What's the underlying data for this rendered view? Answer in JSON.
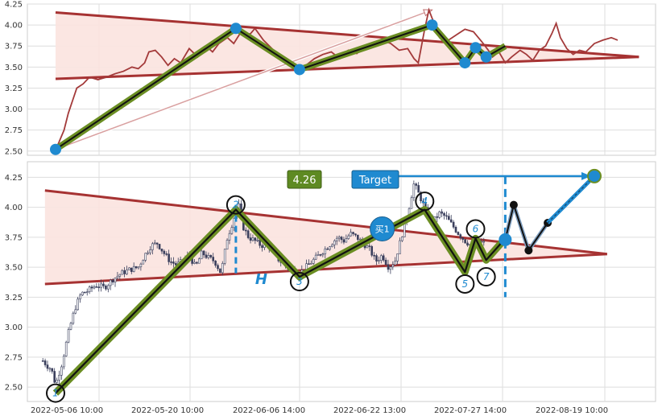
{
  "chart_data": [
    {
      "type": "line",
      "panel": "top",
      "ylim": [
        2.45,
        4.25
      ],
      "yticks": [
        "2.50",
        "2.75",
        "3.00",
        "3.25",
        "3.50",
        "3.75",
        "4.00",
        "4.25"
      ],
      "series": [
        {
          "values": [
            [
              0,
              2.52
            ],
            [
              0.3,
              2.6
            ],
            [
              0.8,
              2.75
            ],
            [
              1.2,
              2.95
            ],
            [
              1.6,
              3.1
            ],
            [
              2.0,
              3.25
            ],
            [
              2.6,
              3.3
            ],
            [
              3.2,
              3.38
            ],
            [
              4,
              3.35
            ],
            [
              4.8,
              3.38
            ],
            [
              5.6,
              3.42
            ],
            [
              6.4,
              3.45
            ],
            [
              7.2,
              3.5
            ],
            [
              7.8,
              3.48
            ],
            [
              8.4,
              3.55
            ],
            [
              8.8,
              3.68
            ],
            [
              9.4,
              3.7
            ],
            [
              10,
              3.62
            ],
            [
              10.6,
              3.52
            ],
            [
              11.2,
              3.6
            ],
            [
              11.8,
              3.55
            ],
            [
              12.6,
              3.72
            ],
            [
              13.4,
              3.62
            ],
            [
              14.2,
              3.75
            ],
            [
              14.8,
              3.68
            ],
            [
              15.4,
              3.78
            ],
            [
              16.2,
              3.85
            ],
            [
              16.8,
              3.78
            ],
            [
              17.4,
              3.9
            ],
            [
              18,
              3.88
            ],
            [
              18.4,
              3.9
            ],
            [
              18.8,
              3.96
            ],
            [
              19.6,
              3.82
            ],
            [
              20.4,
              3.72
            ],
            [
              21.2,
              3.6
            ],
            [
              21.8,
              3.55
            ],
            [
              22.4,
              3.52
            ],
            [
              23,
              3.5
            ],
            [
              23.6,
              3.52
            ],
            [
              24.4,
              3.6
            ],
            [
              25.2,
              3.65
            ],
            [
              26,
              3.68
            ],
            [
              26.8,
              3.6
            ],
            [
              27.6,
              3.7
            ],
            [
              28.4,
              3.66
            ],
            [
              29.2,
              3.75
            ],
            [
              30,
              3.78
            ],
            [
              30.8,
              3.82
            ],
            [
              31.6,
              3.78
            ],
            [
              32.4,
              3.7
            ],
            [
              33.2,
              3.72
            ],
            [
              33.8,
              3.6
            ],
            [
              34.2,
              3.55
            ],
            [
              34.8,
              3.95
            ],
            [
              35.2,
              4.18
            ],
            [
              35.6,
              4.05
            ],
            [
              36.2,
              3.85
            ],
            [
              36.8,
              3.8
            ],
            [
              37.4,
              3.85
            ],
            [
              38,
              3.9
            ],
            [
              38.6,
              3.95
            ],
            [
              39.4,
              3.92
            ],
            [
              40.2,
              3.8
            ],
            [
              40.8,
              3.7
            ],
            [
              41.2,
              3.62
            ],
            [
              41.8,
              3.68
            ],
            [
              42.4,
              3.55
            ],
            [
              43,
              3.62
            ],
            [
              43.8,
              3.7
            ],
            [
              44.4,
              3.65
            ],
            [
              45,
              3.58
            ],
            [
              45.6,
              3.7
            ],
            [
              46.2,
              3.75
            ],
            [
              46.8,
              3.9
            ],
            [
              47.2,
              4.02
            ],
            [
              47.6,
              3.85
            ],
            [
              48.2,
              3.72
            ],
            [
              48.8,
              3.65
            ],
            [
              49.4,
              3.7
            ],
            [
              50,
              3.68
            ],
            [
              50.8,
              3.78
            ],
            [
              51.6,
              3.82
            ],
            [
              52.4,
              3.85
            ],
            [
              53,
              3.82
            ]
          ]
        }
      ],
      "triangle": {
        "upper": [
          [
            0,
            4.15
          ],
          [
            55,
            3.62
          ]
        ],
        "lower": [
          [
            0,
            3.36
          ],
          [
            55,
            3.62
          ]
        ]
      },
      "waves": [
        [
          0,
          2.52
        ],
        [
          17,
          3.96
        ],
        [
          23,
          3.47
        ],
        [
          35.5,
          4.0
        ],
        [
          38.6,
          3.55
        ],
        [
          39.6,
          3.73
        ],
        [
          40.6,
          3.62
        ],
        [
          42.4,
          3.75
        ]
      ],
      "trend_arrow": [
        [
          0,
          2.52
        ],
        [
          35.5,
          4.18
        ]
      ]
    },
    {
      "type": "candlestick",
      "panel": "bottom",
      "ylim": [
        2.38,
        4.38
      ],
      "yticks": [
        "2.50",
        "2.75",
        "3.00",
        "3.25",
        "3.50",
        "3.75",
        "4.00",
        "4.25"
      ],
      "xticks": [
        "2022-05-06 10:00",
        "2022-05-20 10:00",
        "2022-06-06 14:00",
        "2022-06-22 13:00",
        "2022-07-27 14:00",
        "2022-08-19 10:00"
      ],
      "price_path": [
        [
          -1.2,
          2.72
        ],
        [
          -0.8,
          2.68
        ],
        [
          -0.4,
          2.65
        ],
        [
          0,
          2.52
        ],
        [
          0.6,
          2.7
        ],
        [
          1.2,
          2.95
        ],
        [
          1.8,
          3.15
        ],
        [
          2.4,
          3.28
        ],
        [
          3,
          3.3
        ],
        [
          3.8,
          3.35
        ],
        [
          4.6,
          3.33
        ],
        [
          5.4,
          3.4
        ],
        [
          6.2,
          3.45
        ],
        [
          7,
          3.48
        ],
        [
          7.8,
          3.5
        ],
        [
          8.4,
          3.6
        ],
        [
          9,
          3.68
        ],
        [
          9.6,
          3.7
        ],
        [
          10.2,
          3.62
        ],
        [
          10.8,
          3.55
        ],
        [
          11.4,
          3.52
        ],
        [
          12,
          3.55
        ],
        [
          12.6,
          3.6
        ],
        [
          13.2,
          3.5
        ],
        [
          13.8,
          3.62
        ],
        [
          14.4,
          3.58
        ],
        [
          15,
          3.55
        ],
        [
          15.6,
          3.45
        ],
        [
          16.2,
          3.75
        ],
        [
          16.8,
          3.9
        ],
        [
          17.2,
          4.05
        ],
        [
          17.6,
          3.85
        ],
        [
          18.2,
          3.75
        ],
        [
          18.8,
          3.72
        ],
        [
          19.4,
          3.68
        ],
        [
          20,
          3.7
        ],
        [
          20.6,
          3.6
        ],
        [
          21.2,
          3.55
        ],
        [
          21.8,
          3.5
        ],
        [
          22.4,
          3.48
        ],
        [
          23,
          3.45
        ],
        [
          23.6,
          3.5
        ],
        [
          24.2,
          3.55
        ],
        [
          24.8,
          3.6
        ],
        [
          25.4,
          3.65
        ],
        [
          26,
          3.7
        ],
        [
          26.6,
          3.75
        ],
        [
          27.2,
          3.72
        ],
        [
          27.8,
          3.78
        ],
        [
          28.4,
          3.75
        ],
        [
          29,
          3.7
        ],
        [
          29.6,
          3.65
        ],
        [
          30.2,
          3.55
        ],
        [
          30.8,
          3.6
        ],
        [
          31.4,
          3.5
        ],
        [
          32,
          3.55
        ],
        [
          32.6,
          3.75
        ],
        [
          33.2,
          3.95
        ],
        [
          33.8,
          4.2
        ],
        [
          34.4,
          4.08
        ],
        [
          35,
          3.95
        ],
        [
          35.6,
          3.88
        ],
        [
          36.2,
          3.95
        ],
        [
          36.8,
          3.92
        ],
        [
          37.4,
          3.85
        ],
        [
          38,
          3.78
        ],
        [
          38.6,
          3.72
        ],
        [
          39.2,
          3.68
        ],
        [
          39.8,
          3.72
        ],
        [
          40.4,
          3.7
        ]
      ],
      "triangle": {
        "upper": [
          [
            -1,
            4.14
          ],
          [
            52,
            3.61
          ]
        ],
        "lower": [
          [
            -1,
            3.36
          ],
          [
            52,
            3.61
          ]
        ]
      },
      "waves": [
        [
          0,
          2.45
        ],
        [
          17,
          3.98
        ],
        [
          23,
          3.42
        ],
        [
          34.8,
          3.98
        ],
        [
          38.6,
          3.46
        ],
        [
          39.6,
          3.74
        ],
        [
          40.6,
          3.56
        ],
        [
          42.4,
          3.74
        ]
      ],
      "points": [
        {
          "label": "1",
          "x": 0,
          "y": 2.45
        },
        {
          "label": "2",
          "x": 17,
          "y": 4.02
        },
        {
          "label": "3",
          "x": 23,
          "y": 3.38
        },
        {
          "label": "4",
          "x": 34.8,
          "y": 4.05
        },
        {
          "label": "5",
          "x": 38.6,
          "y": 3.36
        },
        {
          "label": "6",
          "x": 39.6,
          "y": 3.82
        },
        {
          "label": "7",
          "x": 40.6,
          "y": 3.42
        }
      ],
      "h_label": "H",
      "h_mark": {
        "x": 17,
        "y1": 3.45,
        "y2": 4.02
      },
      "h2_mark": {
        "x": 42.4,
        "y1": 3.25,
        "y2": 4.26
      },
      "buy": {
        "label": "买1",
        "x": 30.8,
        "y": 3.82
      },
      "entry": {
        "x": 42.4,
        "y": 3.73
      },
      "projection": [
        [
          42.4,
          3.73
        ],
        [
          43.2,
          4.02
        ],
        [
          44.6,
          3.64
        ],
        [
          46.4,
          3.87
        ]
      ],
      "target_line": {
        "x1": 31.2,
        "x2": 50.8,
        "y": 4.26
      },
      "target_label": "Target",
      "target_value": "4.26",
      "target_dot": {
        "x": 50.8,
        "y": 4.26
      }
    }
  ],
  "colors": {
    "triangle": "#a63232",
    "triangle_fill": "#fbe3df",
    "wave_outer": "#6b8e23",
    "wave_inner": "#111111",
    "blue": "#1f8ad0",
    "value_box": "#5e8a22",
    "line": "#a33a3a",
    "candle": "#3a3f5c"
  }
}
